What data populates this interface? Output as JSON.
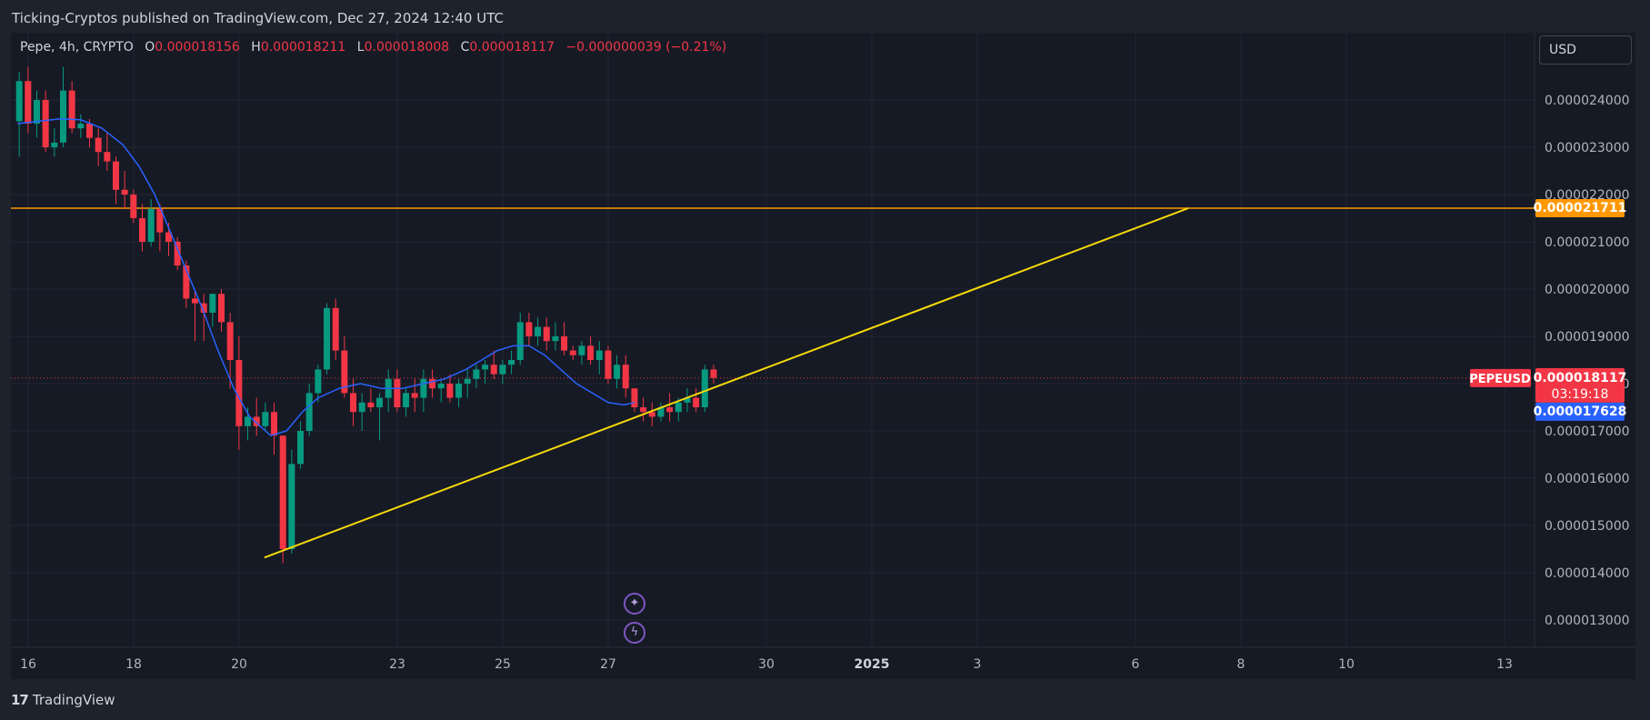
{
  "header": {
    "publisher_line": "Ticking-Cryptos published on TradingView.com, Dec 27, 2024 12:40 UTC"
  },
  "symbol_bar": {
    "name": "Pepe, 4h, CRYPTO",
    "open_label": "O",
    "open": "0.000018156",
    "high_label": "H",
    "high": "0.000018211",
    "low_label": "L",
    "low": "0.000018008",
    "close_label": "C",
    "close": "0.000018117",
    "change": "−0.000000039 (−0.21%)"
  },
  "currency_button": {
    "label": "USD"
  },
  "footer": {
    "logo_mark": "17",
    "brand": "TradingView"
  },
  "colors": {
    "up": "#089981",
    "down": "#f23645",
    "ma": "#2962ff",
    "resistance": "#ff9800",
    "trendline": "#f5d90a",
    "price_badge": "#f23645",
    "ma_badge": "#2962ff",
    "grid": "#232733",
    "text": "#b2b5be"
  },
  "icons": [
    "sparkle-icon",
    "lightning-icon"
  ],
  "chart_data": {
    "type": "candlestick",
    "timeframe": "4h",
    "ylim": [
      1.24e-05,
      2.52e-05
    ],
    "yticks": [
      "0.000013000",
      "0.000014000",
      "0.000015000",
      "0.000016000",
      "0.000017000",
      "0.000018000",
      "0.000019000",
      "0.000020000",
      "0.000021000",
      "0.000022000",
      "0.000023000",
      "0.000024000"
    ],
    "xticks": [
      {
        "day": 16,
        "label": "16"
      },
      {
        "day": 18,
        "label": "18"
      },
      {
        "day": 20,
        "label": "20"
      },
      {
        "day": 23,
        "label": "23"
      },
      {
        "day": 25,
        "label": "25"
      },
      {
        "day": 27,
        "label": "27"
      },
      {
        "day": 30,
        "label": "30"
      },
      {
        "day": 32,
        "label": "2025"
      },
      {
        "day": 34,
        "label": "3"
      },
      {
        "day": 37,
        "label": "6"
      },
      {
        "day": 39,
        "label": "8"
      },
      {
        "day": 41,
        "label": "10"
      },
      {
        "day": 44,
        "label": "13"
      }
    ],
    "x_unit": "days since Dec 0, 2024 (Dec 32 = Jan 1, 2025)",
    "candles_start_day": 15.83,
    "candle_step_days": 0.1667,
    "candles": [
      [
        2.355e-05,
        2.46e-05,
        2.28e-05,
        2.44e-05
      ],
      [
        2.44e-05,
        2.47e-05,
        2.33e-05,
        2.35e-05
      ],
      [
        2.35e-05,
        2.42e-05,
        2.32e-05,
        2.4e-05
      ],
      [
        2.4e-05,
        2.42e-05,
        2.29e-05,
        2.3e-05
      ],
      [
        2.3e-05,
        2.34e-05,
        2.28e-05,
        2.31e-05
      ],
      [
        2.31e-05,
        2.47e-05,
        2.3e-05,
        2.42e-05
      ],
      [
        2.42e-05,
        2.44e-05,
        2.33e-05,
        2.34e-05
      ],
      [
        2.34e-05,
        2.37e-05,
        2.32e-05,
        2.35e-05
      ],
      [
        2.35e-05,
        2.36e-05,
        2.3e-05,
        2.32e-05
      ],
      [
        2.32e-05,
        2.34e-05,
        2.26e-05,
        2.29e-05
      ],
      [
        2.29e-05,
        2.33e-05,
        2.25e-05,
        2.27e-05
      ],
      [
        2.27e-05,
        2.28e-05,
        2.18e-05,
        2.21e-05
      ],
      [
        2.21e-05,
        2.25e-05,
        2.17e-05,
        2.2e-05
      ],
      [
        2.2e-05,
        2.21e-05,
        2.14e-05,
        2.15e-05
      ],
      [
        2.15e-05,
        2.18e-05,
        2.08e-05,
        2.1e-05
      ],
      [
        2.1e-05,
        2.19e-05,
        2.09e-05,
        2.17e-05
      ],
      [
        2.17e-05,
        2.18e-05,
        2.08e-05,
        2.12e-05
      ],
      [
        2.12e-05,
        2.14e-05,
        2.07e-05,
        2.1e-05
      ],
      [
        2.1e-05,
        2.11e-05,
        2.04e-05,
        2.05e-05
      ],
      [
        2.05e-05,
        2.06e-05,
        1.96e-05,
        1.98e-05
      ],
      [
        1.98e-05,
        2e-05,
        1.89e-05,
        1.97e-05
      ],
      [
        1.97e-05,
        1.99e-05,
        1.89e-05,
        1.95e-05
      ],
      [
        1.95e-05,
        1.99e-05,
        1.92e-05,
        1.99e-05
      ],
      [
        1.99e-05,
        2e-05,
        1.91e-05,
        1.93e-05
      ],
      [
        1.93e-05,
        1.95e-05,
        1.79e-05,
        1.85e-05
      ],
      [
        1.85e-05,
        1.9e-05,
        1.66e-05,
        1.71e-05
      ],
      [
        1.71e-05,
        1.75e-05,
        1.68e-05,
        1.73e-05
      ],
      [
        1.73e-05,
        1.77e-05,
        1.69e-05,
        1.71e-05
      ],
      [
        1.71e-05,
        1.76e-05,
        1.7e-05,
        1.74e-05
      ],
      [
        1.74e-05,
        1.76e-05,
        1.65e-05,
        1.69e-05
      ],
      [
        1.69e-05,
        1.69e-05,
        1.42e-05,
        1.45e-05
      ],
      [
        1.45e-05,
        1.66e-05,
        1.44e-05,
        1.63e-05
      ],
      [
        1.63e-05,
        1.72e-05,
        1.62e-05,
        1.7e-05
      ],
      [
        1.7e-05,
        1.8e-05,
        1.69e-05,
        1.78e-05
      ],
      [
        1.78e-05,
        1.84e-05,
        1.76e-05,
        1.83e-05
      ],
      [
        1.83e-05,
        1.97e-05,
        1.82e-05,
        1.96e-05
      ],
      [
        1.96e-05,
        1.98e-05,
        1.85e-05,
        1.87e-05
      ],
      [
        1.87e-05,
        1.9e-05,
        1.77e-05,
        1.78e-05
      ],
      [
        1.78e-05,
        1.81e-05,
        1.71e-05,
        1.74e-05
      ],
      [
        1.74e-05,
        1.78e-05,
        1.7e-05,
        1.76e-05
      ],
      [
        1.76e-05,
        1.79e-05,
        1.74e-05,
        1.75e-05
      ],
      [
        1.75e-05,
        1.78e-05,
        1.68e-05,
        1.77e-05
      ],
      [
        1.77e-05,
        1.83e-05,
        1.74e-05,
        1.81e-05
      ],
      [
        1.81e-05,
        1.83e-05,
        1.74e-05,
        1.75e-05
      ],
      [
        1.75e-05,
        1.79e-05,
        1.73e-05,
        1.78e-05
      ],
      [
        1.78e-05,
        1.81e-05,
        1.74e-05,
        1.77e-05
      ],
      [
        1.77e-05,
        1.83e-05,
        1.74e-05,
        1.81e-05
      ],
      [
        1.81e-05,
        1.83e-05,
        1.77e-05,
        1.79e-05
      ],
      [
        1.79e-05,
        1.81e-05,
        1.76e-05,
        1.8e-05
      ],
      [
        1.8e-05,
        1.82e-05,
        1.76e-05,
        1.77e-05
      ],
      [
        1.77e-05,
        1.81e-05,
        1.75e-05,
        1.8e-05
      ],
      [
        1.8e-05,
        1.83e-05,
        1.77e-05,
        1.81e-05
      ],
      [
        1.81e-05,
        1.84e-05,
        1.79e-05,
        1.83e-05
      ],
      [
        1.83e-05,
        1.85e-05,
        1.8e-05,
        1.84e-05
      ],
      [
        1.84e-05,
        1.87e-05,
        1.81e-05,
        1.82e-05
      ],
      [
        1.82e-05,
        1.85e-05,
        1.8e-05,
        1.84e-05
      ],
      [
        1.84e-05,
        1.87e-05,
        1.82e-05,
        1.85e-05
      ],
      [
        1.85e-05,
        1.95e-05,
        1.84e-05,
        1.93e-05
      ],
      [
        1.93e-05,
        1.95e-05,
        1.88e-05,
        1.9e-05
      ],
      [
        1.9e-05,
        1.94e-05,
        1.88e-05,
        1.92e-05
      ],
      [
        1.92e-05,
        1.94e-05,
        1.87e-05,
        1.89e-05
      ],
      [
        1.89e-05,
        1.93e-05,
        1.87e-05,
        1.9e-05
      ],
      [
        1.9e-05,
        1.93e-05,
        1.86e-05,
        1.87e-05
      ],
      [
        1.87e-05,
        1.88e-05,
        1.85e-05,
        1.86e-05
      ],
      [
        1.86e-05,
        1.89e-05,
        1.84e-05,
        1.88e-05
      ],
      [
        1.88e-05,
        1.9e-05,
        1.84e-05,
        1.85e-05
      ],
      [
        1.85e-05,
        1.89e-05,
        1.82e-05,
        1.87e-05
      ],
      [
        1.87e-05,
        1.88e-05,
        1.8e-05,
        1.81e-05
      ],
      [
        1.81e-05,
        1.86e-05,
        1.79e-05,
        1.84e-05
      ],
      [
        1.84e-05,
        1.86e-05,
        1.77e-05,
        1.79e-05
      ],
      [
        1.79e-05,
        1.79e-05,
        1.74e-05,
        1.75e-05
      ],
      [
        1.75e-05,
        1.77e-05,
        1.72e-05,
        1.74e-05
      ],
      [
        1.74e-05,
        1.76e-05,
        1.71e-05,
        1.73e-05
      ],
      [
        1.73e-05,
        1.76e-05,
        1.72e-05,
        1.75e-05
      ],
      [
        1.75e-05,
        1.78e-05,
        1.72e-05,
        1.74e-05
      ],
      [
        1.74e-05,
        1.77e-05,
        1.72e-05,
        1.76e-05
      ],
      [
        1.76e-05,
        1.79e-05,
        1.74e-05,
        1.77e-05
      ],
      [
        1.77e-05,
        1.79e-05,
        1.74e-05,
        1.75e-05
      ],
      [
        1.75e-05,
        1.84e-05,
        1.74e-05,
        1.83e-05
      ],
      [
        1.83e-05,
        1.84e-05,
        1.8e-05,
        1.812e-05
      ]
    ],
    "moving_average": [
      [
        15.8,
        2.35e-05
      ],
      [
        16.2,
        2.355e-05
      ],
      [
        16.6,
        2.36e-05
      ],
      [
        17.0,
        2.358e-05
      ],
      [
        17.4,
        2.34e-05
      ],
      [
        17.8,
        2.305e-05
      ],
      [
        18.1,
        2.26e-05
      ],
      [
        18.4,
        2.2e-05
      ],
      [
        18.7,
        2.12e-05
      ],
      [
        19.0,
        2.04e-05
      ],
      [
        19.3,
        1.96e-05
      ],
      [
        19.6,
        1.87e-05
      ],
      [
        19.9,
        1.79e-05
      ],
      [
        20.2,
        1.73e-05
      ],
      [
        20.6,
        1.69e-05
      ],
      [
        20.9,
        1.7e-05
      ],
      [
        21.2,
        1.74e-05
      ],
      [
        21.5,
        1.77e-05
      ],
      [
        21.9,
        1.79e-05
      ],
      [
        22.3,
        1.8e-05
      ],
      [
        22.7,
        1.79e-05
      ],
      [
        23.1,
        1.79e-05
      ],
      [
        23.5,
        1.8e-05
      ],
      [
        23.9,
        1.81e-05
      ],
      [
        24.3,
        1.83e-05
      ],
      [
        24.6,
        1.85e-05
      ],
      [
        24.9,
        1.87e-05
      ],
      [
        25.2,
        1.88e-05
      ],
      [
        25.5,
        1.88e-05
      ],
      [
        25.8,
        1.86e-05
      ],
      [
        26.1,
        1.83e-05
      ],
      [
        26.4,
        1.8e-05
      ],
      [
        26.7,
        1.78e-05
      ],
      [
        27.0,
        1.76e-05
      ],
      [
        27.3,
        1.755e-05
      ],
      [
        27.5,
        1.76e-05
      ]
    ],
    "resistance_line": {
      "price": 2.1711e-05,
      "label": "0.000021711"
    },
    "trendline": {
      "from": [
        20.48,
        1.432e-05
      ],
      "to": [
        38.0,
        2.171e-05
      ]
    },
    "current_price": {
      "symbol": "PEPEUSD",
      "label": "0.000018117",
      "value": 1.8117e-05,
      "countdown": "03:19:18"
    },
    "ma_value": {
      "label": "0.000017628",
      "value": 1.7628e-05
    }
  }
}
